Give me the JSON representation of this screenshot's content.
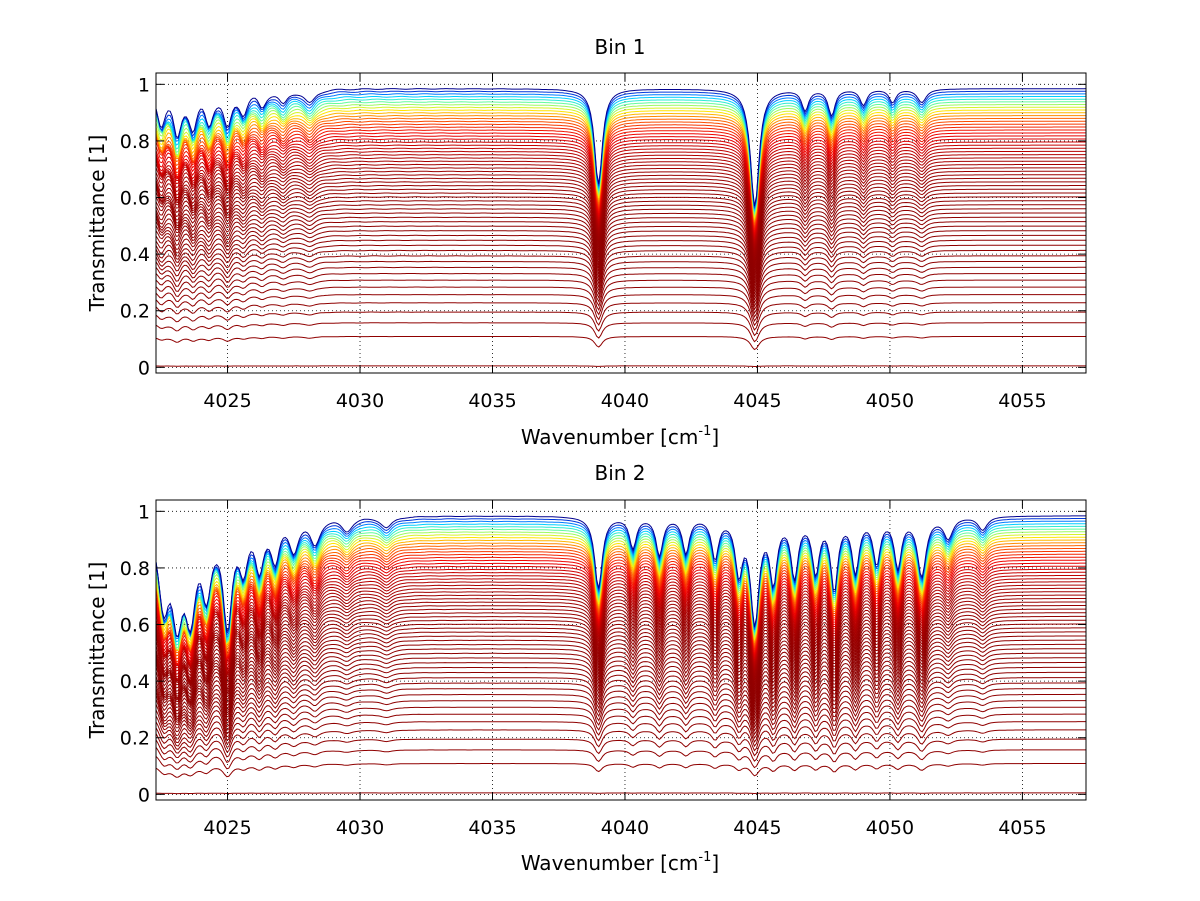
{
  "chart_data": [
    {
      "type": "line",
      "title": "Bin 1",
      "xlabel": "Wavenumber [cm",
      "xlabel_sup": "-1",
      "xlabel_end": "]",
      "ylabel": "Transmittance [1]",
      "xlim": [
        4022.3,
        4057.4
      ],
      "ylim": [
        -0.02,
        1.04
      ],
      "xticks": [
        "4025",
        "4030",
        "4035",
        "4040",
        "4045",
        "4050",
        "4055"
      ],
      "yticks": [
        "0",
        "0.2",
        "0.4",
        "0.6",
        "0.8",
        "1"
      ],
      "grid": true,
      "n_spectra": 60,
      "continuum_range": [
        0.005,
        0.985
      ],
      "absorption_lines": [
        {
          "center": 4022.5,
          "depth": 0.12,
          "width": 0.18
        },
        {
          "center": 4023.1,
          "depth": 0.18,
          "width": 0.18
        },
        {
          "center": 4023.7,
          "depth": 0.14,
          "width": 0.18
        },
        {
          "center": 4024.3,
          "depth": 0.12,
          "width": 0.18
        },
        {
          "center": 4025.0,
          "depth": 0.14,
          "width": 0.18
        },
        {
          "center": 4025.6,
          "depth": 0.08,
          "width": 0.18
        },
        {
          "center": 4026.3,
          "depth": 0.06,
          "width": 0.18
        },
        {
          "center": 4027.1,
          "depth": 0.05,
          "width": 0.2
        },
        {
          "center": 4028.1,
          "depth": 0.05,
          "width": 0.25
        },
        {
          "center": 4039.0,
          "depth": 0.42,
          "width": 0.16
        },
        {
          "center": 4044.9,
          "depth": 0.55,
          "width": 0.17
        },
        {
          "center": 4046.8,
          "depth": 0.08,
          "width": 0.15
        },
        {
          "center": 4047.8,
          "depth": 0.1,
          "width": 0.15
        },
        {
          "center": 4049.0,
          "depth": 0.06,
          "width": 0.15
        },
        {
          "center": 4050.1,
          "depth": 0.05,
          "width": 0.15
        },
        {
          "center": 4051.2,
          "depth": 0.05,
          "width": 0.2
        }
      ],
      "colormap": [
        "#00008f",
        "#0050ff",
        "#00dfff",
        "#70ff8f",
        "#ffef00",
        "#ff6000",
        "#ef0000",
        "#8f0000"
      ]
    },
    {
      "type": "line",
      "title": "Bin 2",
      "xlabel": "Wavenumber [cm",
      "xlabel_sup": "-1",
      "xlabel_end": "]",
      "ylabel": "Transmittance [1]",
      "xlim": [
        4022.3,
        4057.4
      ],
      "ylim": [
        -0.02,
        1.04
      ],
      "xticks": [
        "4025",
        "4030",
        "4035",
        "4040",
        "4045",
        "4050",
        "4055"
      ],
      "yticks": [
        "0",
        "0.2",
        "0.4",
        "0.6",
        "0.8",
        "1"
      ],
      "grid": true,
      "n_spectra": 60,
      "continuum_range": [
        0.005,
        0.985
      ],
      "absorption_lines": [
        {
          "center": 4022.6,
          "depth": 0.35,
          "width": 0.22
        },
        {
          "center": 4023.1,
          "depth": 0.45,
          "width": 0.22
        },
        {
          "center": 4023.6,
          "depth": 0.4,
          "width": 0.22
        },
        {
          "center": 4024.2,
          "depth": 0.3,
          "width": 0.2
        },
        {
          "center": 4025.0,
          "depth": 0.5,
          "width": 0.18
        },
        {
          "center": 4025.6,
          "depth": 0.18,
          "width": 0.18
        },
        {
          "center": 4026.2,
          "depth": 0.2,
          "width": 0.18
        },
        {
          "center": 4026.8,
          "depth": 0.16,
          "width": 0.18
        },
        {
          "center": 4027.5,
          "depth": 0.12,
          "width": 0.2
        },
        {
          "center": 4028.3,
          "depth": 0.1,
          "width": 0.22
        },
        {
          "center": 4029.5,
          "depth": 0.05,
          "width": 0.25
        },
        {
          "center": 4031.0,
          "depth": 0.04,
          "width": 0.25
        },
        {
          "center": 4039.0,
          "depth": 0.3,
          "width": 0.16
        },
        {
          "center": 4040.3,
          "depth": 0.12,
          "width": 0.15
        },
        {
          "center": 4041.3,
          "depth": 0.15,
          "width": 0.15
        },
        {
          "center": 4042.3,
          "depth": 0.14,
          "width": 0.15
        },
        {
          "center": 4043.4,
          "depth": 0.16,
          "width": 0.15
        },
        {
          "center": 4044.3,
          "depth": 0.22,
          "width": 0.15
        },
        {
          "center": 4044.9,
          "depth": 0.48,
          "width": 0.17
        },
        {
          "center": 4045.6,
          "depth": 0.26,
          "width": 0.15
        },
        {
          "center": 4046.4,
          "depth": 0.24,
          "width": 0.15
        },
        {
          "center": 4047.2,
          "depth": 0.22,
          "width": 0.15
        },
        {
          "center": 4047.9,
          "depth": 0.3,
          "width": 0.15
        },
        {
          "center": 4048.7,
          "depth": 0.22,
          "width": 0.15
        },
        {
          "center": 4049.5,
          "depth": 0.18,
          "width": 0.15
        },
        {
          "center": 4050.3,
          "depth": 0.2,
          "width": 0.15
        },
        {
          "center": 4051.2,
          "depth": 0.24,
          "width": 0.18
        },
        {
          "center": 4052.2,
          "depth": 0.08,
          "width": 0.2
        },
        {
          "center": 4053.5,
          "depth": 0.05,
          "width": 0.2
        }
      ],
      "colormap": [
        "#00008f",
        "#0050ff",
        "#00dfff",
        "#70ff8f",
        "#ffef00",
        "#ff6000",
        "#ef0000",
        "#8f0000"
      ]
    }
  ]
}
